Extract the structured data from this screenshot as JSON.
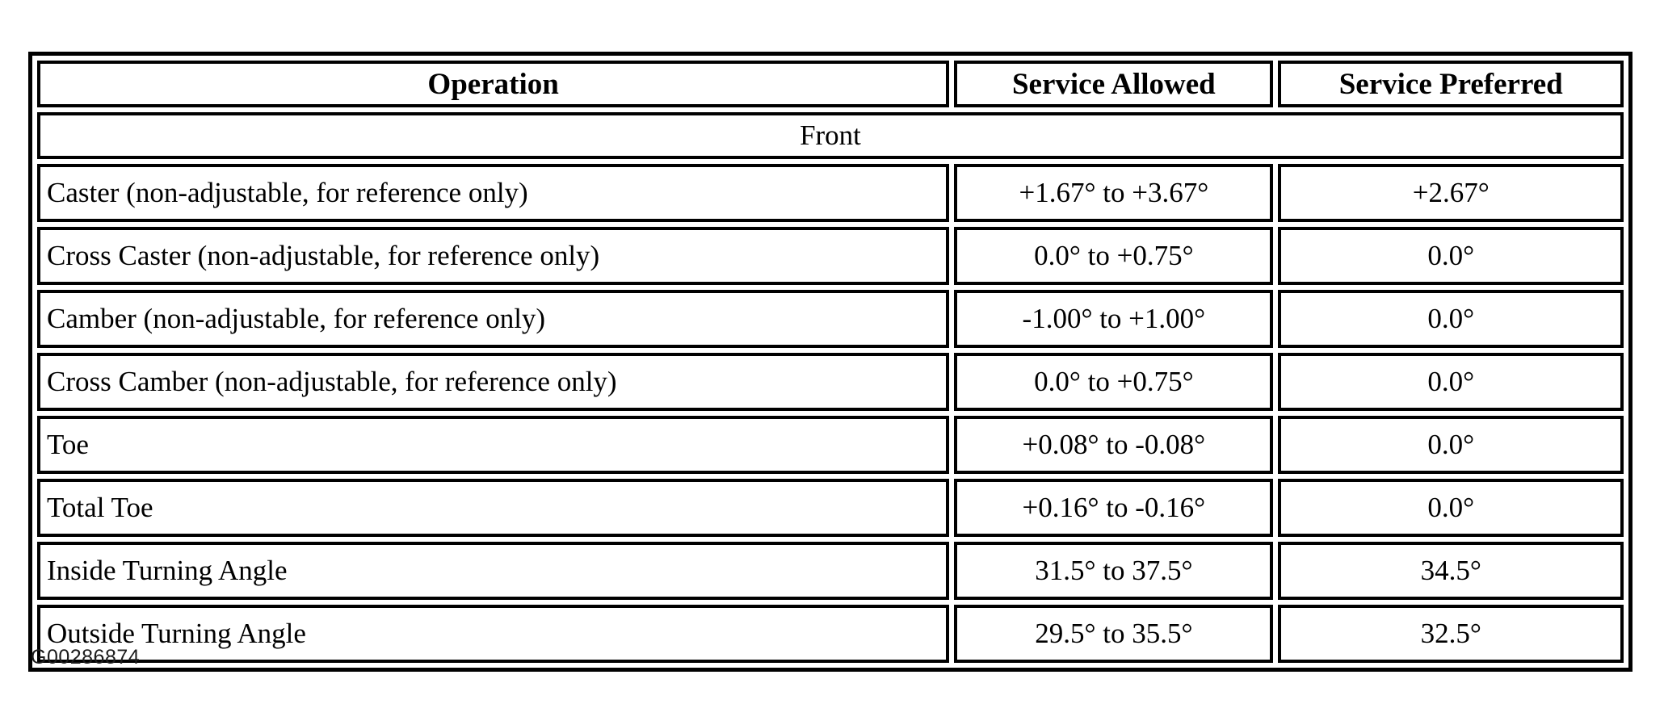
{
  "table": {
    "headers": [
      "Operation",
      "Service Allowed",
      "Service Preferred"
    ],
    "section_label": "Front",
    "rows": [
      {
        "operation": "Caster (non-adjustable, for reference only)",
        "allowed": "+1.67° to +3.67°",
        "preferred": "+2.67°"
      },
      {
        "operation": "Cross Caster (non-adjustable, for reference only)",
        "allowed": "0.0° to +0.75°",
        "preferred": "0.0°"
      },
      {
        "operation": "Camber (non-adjustable, for reference only)",
        "allowed": "-1.00° to +1.00°",
        "preferred": "0.0°"
      },
      {
        "operation": "Cross Camber (non-adjustable, for reference only)",
        "allowed": "0.0° to +0.75°",
        "preferred": "0.0°"
      },
      {
        "operation": "Toe",
        "allowed": "+0.08° to -0.08°",
        "preferred": "0.0°"
      },
      {
        "operation": "Total Toe",
        "allowed": "+0.16° to -0.16°",
        "preferred": "0.0°"
      },
      {
        "operation": "Inside Turning Angle",
        "allowed": "31.5° to 37.5°",
        "preferred": "34.5°"
      },
      {
        "operation": "Outside Turning Angle",
        "allowed": "29.5° to 35.5°",
        "preferred": "32.5°"
      }
    ]
  },
  "caption": "G00286874",
  "colors": {
    "border": "#000000",
    "text": "#000000",
    "background": "#ffffff"
  }
}
